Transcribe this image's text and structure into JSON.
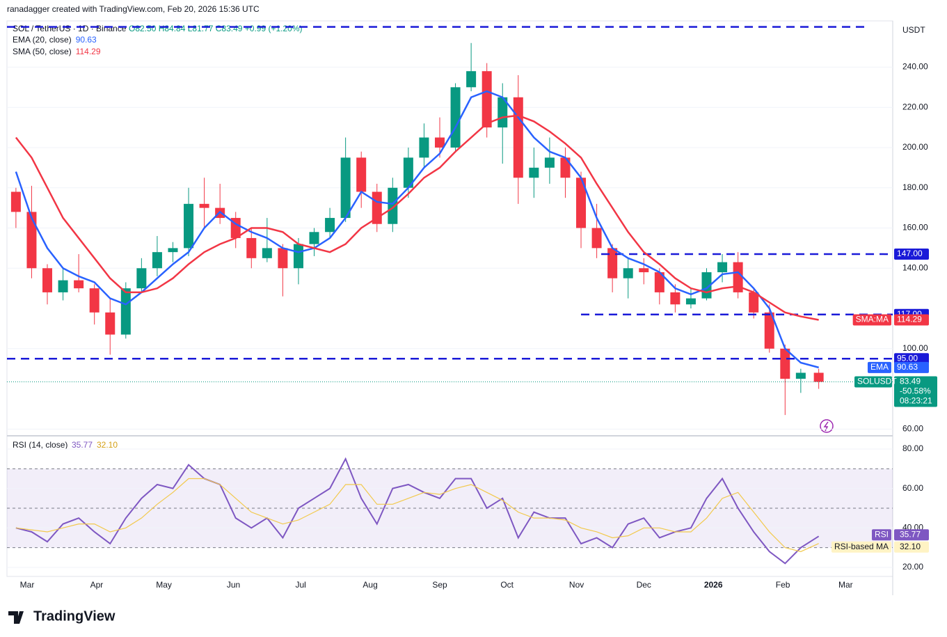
{
  "header": {
    "credit": "ranadagger created with TradingView.com, Feb 20, 2026 15:36 UTC",
    "brand": "TradingView"
  },
  "chart_data": [
    {
      "type": "candlestick",
      "title": "SOL / TetherUS · 1D · Binance",
      "ohlc_text": "O82.50 H84.84 L81.77 C83.49 +0.99 (+1.20%)",
      "unit": "USDT",
      "x": [
        -5,
        2,
        9,
        16,
        23,
        30,
        37,
        44,
        51,
        58,
        65,
        72,
        79,
        86,
        93,
        100,
        107,
        114,
        121,
        128,
        135,
        142,
        149,
        156,
        163,
        170,
        177,
        184,
        191,
        198,
        205,
        212,
        219,
        226,
        233,
        240,
        247,
        254,
        261,
        268,
        275,
        282,
        289,
        296,
        303,
        310,
        317,
        324,
        331,
        338,
        345,
        353
      ],
      "open": [
        178,
        168,
        140,
        128,
        134,
        130,
        118,
        107,
        130,
        140,
        148,
        150,
        172,
        170,
        165,
        155,
        145,
        150,
        140,
        152,
        158,
        165,
        195,
        178,
        162,
        180,
        195,
        205,
        200,
        230,
        238,
        210,
        225,
        185,
        190,
        195,
        185,
        160,
        150,
        135,
        140,
        138,
        128,
        122,
        125,
        138,
        143,
        128,
        118,
        100,
        85,
        88
      ],
      "high": [
        180,
        181,
        142,
        140,
        147,
        132,
        125,
        133,
        145,
        156,
        153,
        180,
        185,
        182,
        168,
        160,
        165,
        152,
        155,
        160,
        170,
        205,
        198,
        182,
        185,
        200,
        212,
        215,
        232,
        252,
        242,
        232,
        236,
        200,
        205,
        200,
        188,
        172,
        152,
        145,
        145,
        140,
        132,
        130,
        140,
        147,
        148,
        130,
        122,
        102,
        90,
        90
      ],
      "low": [
        160,
        135,
        122,
        124,
        128,
        112,
        97,
        105,
        128,
        136,
        143,
        146,
        160,
        162,
        150,
        140,
        143,
        126,
        132,
        146,
        155,
        163,
        170,
        158,
        158,
        175,
        190,
        195,
        198,
        228,
        205,
        192,
        172,
        175,
        182,
        175,
        150,
        145,
        128,
        125,
        132,
        122,
        118,
        120,
        124,
        133,
        125,
        115,
        98,
        67,
        78,
        80
      ],
      "close": [
        168,
        140,
        128,
        134,
        130,
        118,
        107,
        130,
        140,
        148,
        150,
        172,
        170,
        165,
        155,
        145,
        150,
        140,
        152,
        158,
        165,
        195,
        178,
        162,
        180,
        195,
        205,
        200,
        230,
        238,
        210,
        225,
        185,
        190,
        195,
        185,
        160,
        150,
        135,
        140,
        138,
        128,
        122,
        125,
        138,
        143,
        128,
        118,
        100,
        85,
        88,
        83.49
      ],
      "up_color": "#089981",
      "down_color": "#f23645",
      "xlim": [
        -9,
        386
      ],
      "ylim": [
        57,
        263
      ],
      "yticks": [
        {
          "value": 60,
          "label": "60.00"
        },
        {
          "value": 100,
          "label": "100.00"
        },
        {
          "value": 140,
          "label": "140.00"
        },
        {
          "value": 160,
          "label": "160.00"
        },
        {
          "value": 180,
          "label": "180.00"
        },
        {
          "value": 200,
          "label": "200.00"
        },
        {
          "value": 220,
          "label": "220.00"
        },
        {
          "value": 240,
          "label": "240.00"
        }
      ],
      "overlays": [
        {
          "name": "EMA (20, close)",
          "tag": "EMA",
          "color": "#2962ff",
          "legend_value": "90.63",
          "values": [
            188,
            165,
            150,
            140,
            136,
            133,
            125,
            122,
            128,
            135,
            142,
            148,
            160,
            168,
            162,
            158,
            155,
            150,
            148,
            150,
            155,
            165,
            178,
            173,
            172,
            180,
            190,
            197,
            210,
            225,
            228,
            225,
            215,
            205,
            198,
            195,
            185,
            165,
            150,
            145,
            142,
            138,
            130,
            127,
            130,
            137,
            138,
            130,
            120,
            100,
            93,
            90.63
          ]
        },
        {
          "name": "SMA (50, close)",
          "tag": "SMA:MA",
          "color": "#f23645",
          "legend_value": "114.29",
          "values": [
            205,
            195,
            180,
            165,
            155,
            145,
            135,
            128,
            128,
            130,
            135,
            142,
            148,
            152,
            155,
            160,
            160,
            158,
            152,
            150,
            148,
            152,
            160,
            165,
            170,
            177,
            185,
            190,
            198,
            205,
            212,
            215,
            216,
            213,
            208,
            202,
            195,
            182,
            170,
            158,
            148,
            142,
            135,
            130,
            128,
            130,
            131,
            128,
            123,
            118,
            116,
            114.29
          ]
        }
      ],
      "levels": [
        {
          "value": 260,
          "from": -9
        },
        {
          "value": 147,
          "label": "147.00",
          "from": 256
        },
        {
          "value": 117,
          "label": "117.00",
          "from": 247
        },
        {
          "value": 95,
          "label": "95.00",
          "from": -9
        }
      ],
      "last_price": {
        "symbol": "SOLUSDT",
        "label": "83.49",
        "change": "-50.58%",
        "countdown": "08:23:21"
      }
    },
    {
      "type": "line",
      "title": "RSI (14, close)",
      "x": [
        -5,
        2,
        9,
        16,
        23,
        30,
        37,
        44,
        51,
        58,
        65,
        72,
        79,
        86,
        93,
        100,
        107,
        114,
        121,
        128,
        135,
        142,
        149,
        156,
        163,
        170,
        177,
        184,
        191,
        198,
        205,
        212,
        219,
        226,
        233,
        240,
        247,
        254,
        261,
        268,
        275,
        282,
        289,
        296,
        303,
        310,
        317,
        324,
        331,
        338,
        345,
        353
      ],
      "series": [
        {
          "name": "RSI",
          "color": "#7e57c2",
          "legend_value": "35.77",
          "values": [
            40,
            38,
            33,
            42,
            45,
            38,
            32,
            45,
            55,
            62,
            60,
            72,
            65,
            62,
            45,
            40,
            45,
            35,
            50,
            55,
            60,
            75,
            55,
            42,
            60,
            62,
            58,
            55,
            65,
            65,
            50,
            55,
            35,
            48,
            45,
            45,
            32,
            35,
            30,
            42,
            45,
            35,
            38,
            40,
            55,
            65,
            50,
            38,
            28,
            22,
            30,
            35.77
          ]
        },
        {
          "name": "RSI-based MA",
          "color": "#f2c94c",
          "legend_value": "32.10",
          "values": [
            40,
            39,
            38,
            40,
            42,
            42,
            38,
            40,
            45,
            52,
            58,
            65,
            65,
            62,
            55,
            48,
            45,
            42,
            44,
            48,
            52,
            62,
            62,
            52,
            52,
            55,
            58,
            57,
            60,
            62,
            58,
            54,
            48,
            45,
            45,
            44,
            40,
            38,
            35,
            36,
            40,
            40,
            38,
            38,
            45,
            55,
            58,
            48,
            38,
            30,
            28,
            32.1
          ]
        }
      ],
      "band": [
        30,
        70
      ],
      "midline": 50,
      "xlim": [
        -9,
        386
      ],
      "ylim": [
        15.4,
        86
      ],
      "yticks": [
        {
          "value": 20,
          "label": "20.00"
        },
        {
          "value": 40,
          "label": "40.00"
        },
        {
          "value": 60,
          "label": "60.00"
        },
        {
          "value": 80,
          "label": "80.00"
        }
      ],
      "xticks": [
        {
          "value": 0,
          "label": "Mar"
        },
        {
          "value": 31,
          "label": "Apr"
        },
        {
          "value": 61,
          "label": "May"
        },
        {
          "value": 92,
          "label": "Jun"
        },
        {
          "value": 122,
          "label": "Jul"
        },
        {
          "value": 153,
          "label": "Aug"
        },
        {
          "value": 184,
          "label": "Sep"
        },
        {
          "value": 214,
          "label": "Oct"
        },
        {
          "value": 245,
          "label": "Nov"
        },
        {
          "value": 275,
          "label": "Dec"
        },
        {
          "value": 306,
          "label": "2026"
        },
        {
          "value": 337,
          "label": "Feb"
        },
        {
          "value": 365,
          "label": "Mar"
        }
      ]
    }
  ]
}
